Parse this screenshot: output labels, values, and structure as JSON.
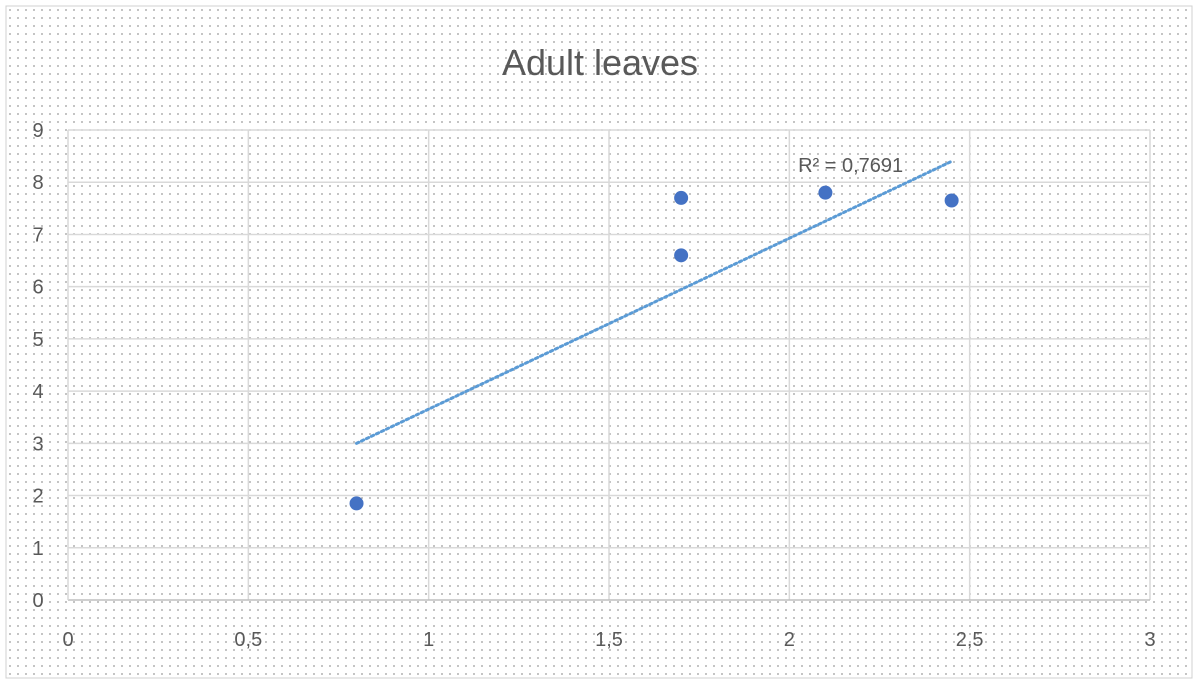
{
  "chart_data": {
    "type": "scatter",
    "title": "Adult leaves",
    "xlabel": "",
    "ylabel": "",
    "xlim": [
      0,
      3
    ],
    "ylim": [
      0,
      9
    ],
    "x_ticks": [
      0,
      0.5,
      1,
      1.5,
      2,
      2.5,
      3
    ],
    "y_ticks": [
      0,
      1,
      2,
      3,
      4,
      5,
      6,
      7,
      8,
      9
    ],
    "x_tick_labels": [
      "0",
      "0,5",
      "1",
      "1,5",
      "2",
      "2,5",
      "3"
    ],
    "y_tick_labels": [
      "0",
      "1",
      "2",
      "3",
      "4",
      "5",
      "6",
      "7",
      "8",
      "9"
    ],
    "grid": true,
    "legend": "none",
    "series": [
      {
        "x": [
          0.8,
          1.7,
          1.7,
          2.1,
          2.45
        ],
        "y": [
          1.85,
          7.7,
          6.6,
          7.8,
          7.65
        ],
        "color": "#4472C4"
      }
    ],
    "trendline": {
      "type": "linear",
      "x_range": [
        0.8,
        2.45
      ],
      "y_range": [
        3.0,
        8.4
      ],
      "style": "dotted",
      "color": "#5B9BD5",
      "r_squared_label": "R² = 0,7691"
    }
  }
}
